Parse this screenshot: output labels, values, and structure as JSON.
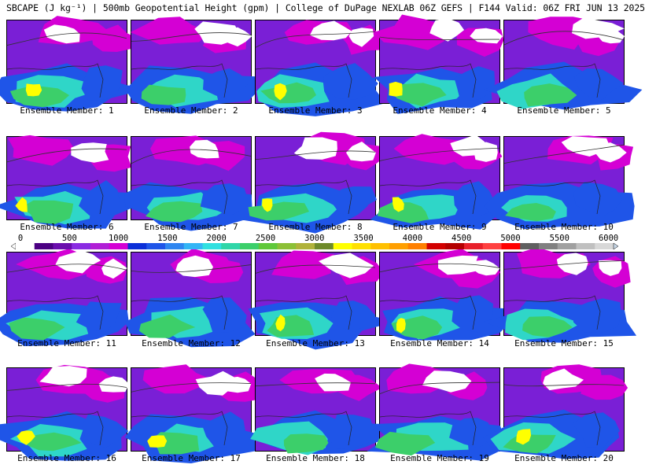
{
  "title": "SBCAPE (J kg⁻¹) | 500mb Geopotential Height (gpm) | College of DuPage NEXLAB 06Z GEFS | F144 Valid: 06Z FRI JUN 13 2025",
  "members": [
    "Ensemble Member: 1",
    "Ensemble Member: 2",
    "Ensemble Member: 3",
    "Ensemble Member: 4",
    "Ensemble Member: 5",
    "Ensemble Member: 6",
    "Ensemble Member: 7",
    "Ensemble Member: 8",
    "Ensemble Member: 9",
    "Ensemble Member: 10",
    "Ensemble Member: 11",
    "Ensemble Member: 12",
    "Ensemble Member: 13",
    "Ensemble Member: 14",
    "Ensemble Member: 15",
    "Ensemble Member: 16",
    "Ensemble Member: 17",
    "Ensemble Member: 18",
    "Ensemble Member: 19",
    "Ensemble Member: 20"
  ],
  "colorbar": {
    "ticks": [
      "0",
      "500",
      "1000",
      "1500",
      "2000",
      "2500",
      "3000",
      "3500",
      "4000",
      "4500",
      "5000",
      "5500",
      "6000"
    ],
    "colors": [
      "#ffffff",
      "#4b0082",
      "#6a0dad",
      "#8a2be2",
      "#b01fd6",
      "#d400d4",
      "#0b2fd8",
      "#1f55e8",
      "#2f86f0",
      "#33b5f5",
      "#2fe0e0",
      "#2fd6a8",
      "#3ccf6a",
      "#5fc83a",
      "#8cc036",
      "#b0b23a",
      "#6e8a2a",
      "#ffff00",
      "#ffe000",
      "#ffc000",
      "#ff9f00",
      "#ff7f00",
      "#d20000",
      "#b40000",
      "#e8202a",
      "#ff4040",
      "#ff0000",
      "#606060",
      "#808080",
      "#a0a0a0",
      "#c0c0c0",
      "#d8d8d8"
    ]
  },
  "legend_colors": {
    "white_low": "#ffffff",
    "purple": "#7a1fd6",
    "magenta": "#d400d4",
    "blue": "#1f55e8",
    "cyan": "#2fd6c8",
    "green": "#3ccf6a",
    "yellow": "#ffff00"
  }
}
